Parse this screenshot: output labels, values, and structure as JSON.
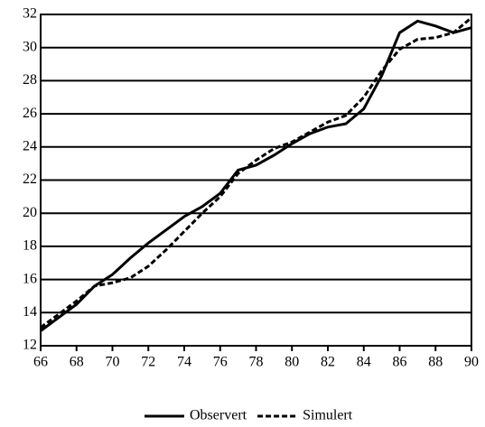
{
  "chart_data": {
    "type": "line",
    "x": [
      66,
      67,
      68,
      69,
      70,
      71,
      72,
      73,
      74,
      75,
      76,
      77,
      78,
      79,
      80,
      81,
      82,
      83,
      84,
      85,
      86,
      87,
      88,
      89,
      90
    ],
    "series": [
      {
        "name": "Observert",
        "color": "#000000",
        "linestyle": "solid",
        "values": [
          12.9,
          13.7,
          14.5,
          15.6,
          16.3,
          17.3,
          18.2,
          19.0,
          19.8,
          20.4,
          21.2,
          22.6,
          22.9,
          23.5,
          24.2,
          24.8,
          25.2,
          25.4,
          26.3,
          28.3,
          30.9,
          31.6,
          31.3,
          30.9,
          31.2
        ]
      },
      {
        "name": "Simulert",
        "color": "#000000",
        "linestyle": "dashed",
        "values": [
          13.1,
          13.9,
          14.7,
          15.6,
          15.8,
          16.1,
          16.8,
          17.8,
          18.9,
          20.0,
          21.0,
          22.4,
          23.2,
          23.9,
          24.3,
          24.9,
          25.5,
          25.9,
          27.0,
          28.6,
          29.9,
          30.5,
          30.6,
          30.9,
          31.8
        ]
      }
    ],
    "xlim": [
      66,
      90
    ],
    "xticks": [
      66,
      68,
      70,
      72,
      74,
      76,
      78,
      80,
      82,
      84,
      86,
      88,
      90
    ],
    "ylim": [
      12,
      32
    ],
    "yticks": [
      12,
      14,
      16,
      18,
      20,
      22,
      24,
      26,
      28,
      30,
      32
    ],
    "grid": true,
    "legend": "bottom"
  }
}
